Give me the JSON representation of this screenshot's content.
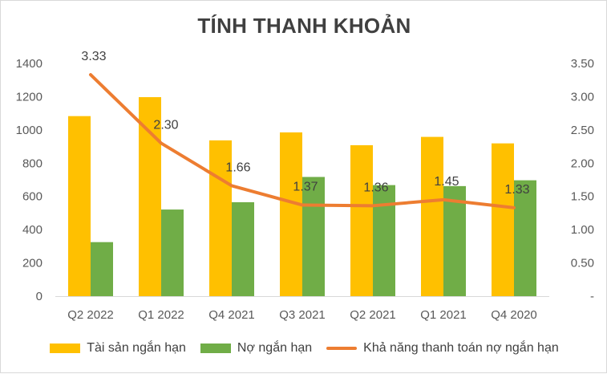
{
  "chart_data": {
    "type": "bar",
    "title": "TÍNH THANH KHOẢN",
    "categories": [
      "Q2 2022",
      "Q1 2022",
      "Q4 2021",
      "Q3 2021",
      "Q2 2021",
      "Q1 2021",
      "Q4 2020"
    ],
    "series": [
      {
        "name": "Tài sản ngắn hạn",
        "type": "bar",
        "axis": "left",
        "color": "#FFC000",
        "values": [
          1083,
          1197,
          937,
          985,
          908,
          958,
          919
        ]
      },
      {
        "name": "Nợ ngắn hạn",
        "type": "bar",
        "axis": "left",
        "color": "#70AD47",
        "values": [
          325,
          521,
          565,
          717,
          668,
          662,
          697
        ]
      },
      {
        "name": "Khả năng thanh toán nợ ngắn hạn",
        "type": "line",
        "axis": "right",
        "color": "#ED7D31",
        "values": [
          3.33,
          2.3,
          1.66,
          1.37,
          1.36,
          1.45,
          1.33
        ],
        "labels": [
          "3.33",
          "2.30",
          "1.66",
          "1.37",
          "1.36",
          "1.45",
          "1.33"
        ]
      }
    ],
    "y_left": {
      "ylim": [
        0,
        1400
      ],
      "ticks": [
        "0",
        "200",
        "400",
        "600",
        "800",
        "1000",
        "1200",
        "1400"
      ]
    },
    "y_right": {
      "ylim": [
        0,
        3.5
      ],
      "ticks": [
        "-",
        "0.50",
        "1.00",
        "1.50",
        "2.00",
        "2.50",
        "3.00",
        "3.50"
      ]
    },
    "grid": false,
    "legend": "bottom"
  }
}
